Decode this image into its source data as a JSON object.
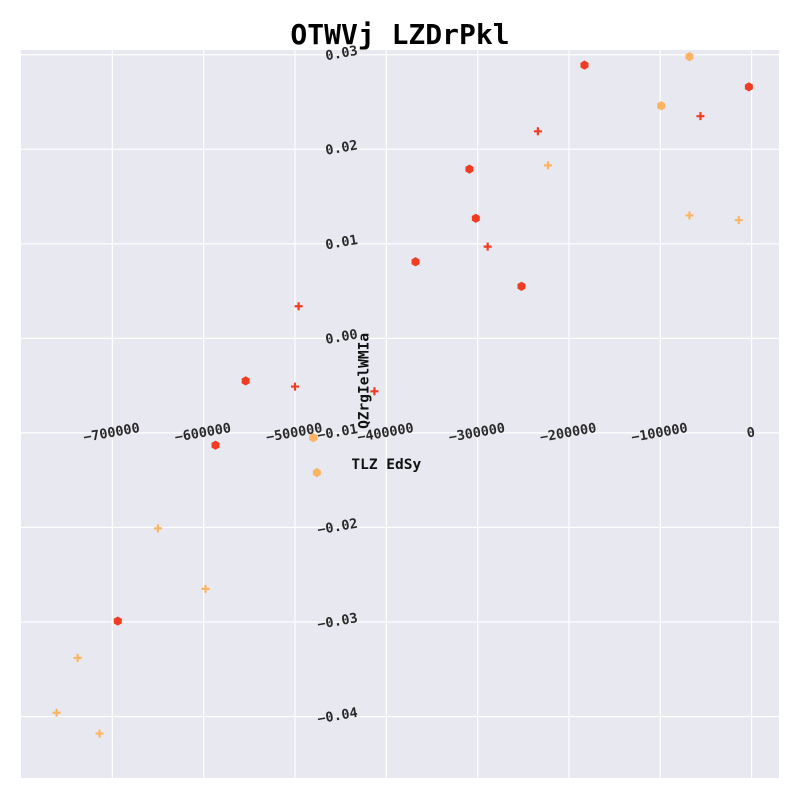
{
  "chart_data": {
    "type": "scatter",
    "title": "OTWVj LZDrPkl",
    "xlabel": "TLZ EdSy",
    "ylabel": "QZrgIelWMIa",
    "xlim": [
      -800000,
      30000
    ],
    "ylim": [
      -0.0465,
      0.0305
    ],
    "x_ticks": [
      -700000,
      -600000,
      -500000,
      -400000,
      -300000,
      -200000,
      -100000,
      0
    ],
    "x_tick_labels": [
      "−700000",
      "−600000",
      "−500000",
      "−400000",
      "−300000",
      "−200000",
      "−100000",
      "0"
    ],
    "y_ticks": [
      -0.04,
      -0.03,
      -0.02,
      -0.01,
      0.0,
      0.01,
      0.02,
      0.03
    ],
    "y_tick_labels": [
      "−0.04",
      "−0.03",
      "−0.02",
      "−0.01",
      "0.00",
      "0.01",
      "0.02",
      "0.03"
    ],
    "grid": true,
    "background": "#e8e8f0",
    "series": [
      {
        "marker": "hexagon",
        "color": "#f03c23",
        "points": [
          [
            -3000,
            0.0266
          ],
          [
            -183000,
            0.0289
          ],
          [
            -309000,
            0.0179
          ],
          [
            -302000,
            0.0127
          ],
          [
            -368000,
            0.0081
          ],
          [
            -252000,
            0.0055
          ],
          [
            -554000,
            -0.0045
          ],
          [
            -587000,
            -0.0113
          ],
          [
            -694000,
            -0.0299
          ]
        ]
      },
      {
        "marker": "plus",
        "color": "#f03c23",
        "points": [
          [
            -56000,
            0.0235
          ],
          [
            -234000,
            0.0219
          ],
          [
            -289000,
            0.0097
          ],
          [
            -496000,
            0.0034
          ],
          [
            -500000,
            -0.0051
          ],
          [
            -413000,
            -0.0056
          ]
        ]
      },
      {
        "marker": "hexagon",
        "color": "#fdb462",
        "points": [
          [
            -68000,
            0.0298
          ],
          [
            -99000,
            0.0246
          ],
          [
            -480000,
            -0.0105
          ],
          [
            -476000,
            -0.0142
          ]
        ]
      },
      {
        "marker": "plus",
        "color": "#fdb462",
        "points": [
          [
            -223000,
            0.0183
          ],
          [
            -68000,
            0.013
          ],
          [
            -14000,
            0.0125
          ],
          [
            -650000,
            -0.0201
          ],
          [
            -598000,
            -0.0265
          ],
          [
            -738000,
            -0.0338
          ],
          [
            -761000,
            -0.0396
          ],
          [
            -714000,
            -0.0418
          ]
        ]
      }
    ]
  }
}
